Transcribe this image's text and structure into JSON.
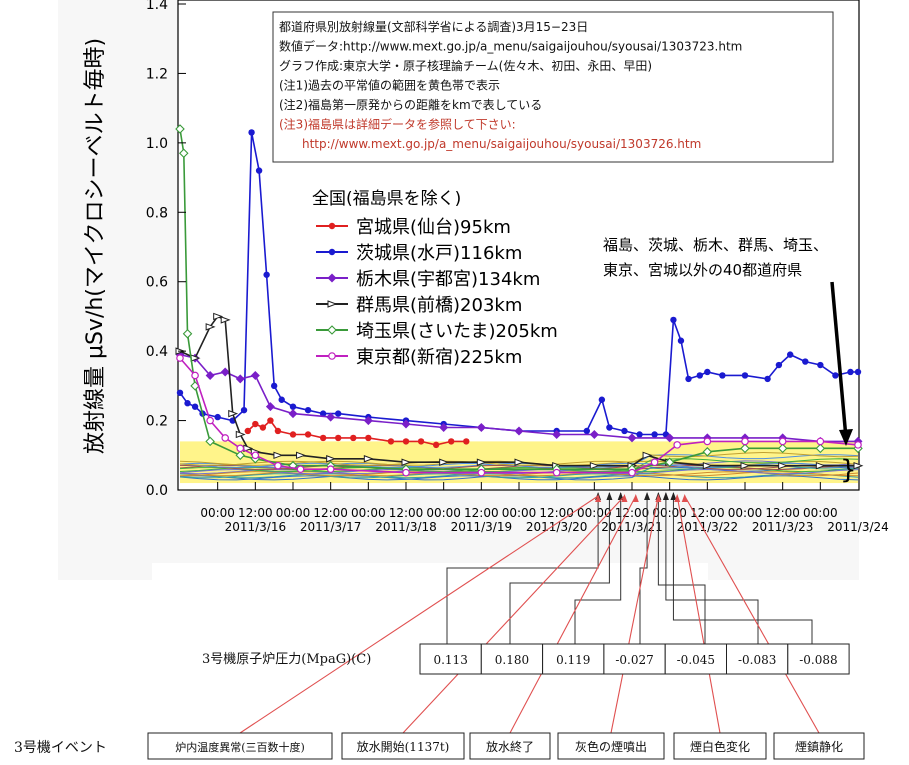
{
  "chart_data": {
    "type": "line",
    "ylabel": "放射線量 μSv/h(マイクロシーベルト毎時)",
    "ylim": [
      0,
      1.4
    ],
    "y_ticks": [
      "0.0",
      "0.2",
      "0.4",
      "0.6",
      "0.8",
      "1.0",
      "1.2",
      "1.4"
    ],
    "x_time_labels": [
      "00:00",
      "12:00",
      "00:00",
      "12:00",
      "00:00",
      "12:00",
      "00:00",
      "12:00",
      "00:00",
      "12:00",
      "00:00",
      "12:00",
      "00:00",
      "12:00",
      "00:00",
      "12:00",
      "00:00"
    ],
    "x_date_labels": [
      "2011/3/16",
      "2011/3/17",
      "2011/3/18",
      "2011/3/19",
      "2011/3/20",
      "2011/3/21",
      "2011/3/22",
      "2011/3/23",
      "2011/3/24"
    ],
    "xlim_days": [
      15.0,
      24.0
    ],
    "grid": false,
    "legend_title": "全国(福島県を除く)",
    "legend_position": "center-left",
    "note_box": [
      {
        "text": "都道府県別放射線量(文部科学省による調査)3月15−23日",
        "color": "#111111"
      },
      {
        "text": "数値データ:http://www.mext.go.jp/a_menu/saigaijouhou/syousai/1303723.htm",
        "color": "#111111"
      },
      {
        "text": "グラフ作成:東京大学・原子核理論チーム(佐々木、初田、永田、早田)",
        "color": "#111111"
      },
      {
        "text": "(注1)過去の平常値の範囲を黄色帯で表示",
        "color": "#111111"
      },
      {
        "text": "(注2)福島第一原発からの距離をkmで表している",
        "color": "#111111"
      },
      {
        "text": "(注3)福島県は詳細データを参照して下さい:",
        "color": "#c0392b"
      },
      {
        "text": "http://www.mext.go.jp/a_menu/saigaijouhou/syousai/1303726.htm",
        "color": "#c0392b"
      }
    ],
    "annotation": "福島、茨城、栃木、群馬、埼玉、\n東京、宮城以外の40都道府県",
    "series": [
      {
        "name": "宮城県(仙台)95km",
        "color": "#e02020",
        "marker": "filled-circle",
        "x": [
          15.9,
          16.0,
          16.1,
          16.2,
          16.3,
          16.5,
          16.7,
          16.9,
          17.1,
          17.3,
          17.5,
          17.8,
          18.0,
          18.2,
          18.4,
          18.6,
          18.8
        ],
        "y": [
          0.17,
          0.19,
          0.18,
          0.2,
          0.17,
          0.16,
          0.16,
          0.15,
          0.15,
          0.15,
          0.15,
          0.14,
          0.14,
          0.14,
          0.13,
          0.14,
          0.14
        ]
      },
      {
        "name": "茨城県(水戸)116km",
        "color": "#1a1ad0",
        "marker": "filled-circle",
        "x": [
          15.0,
          15.1,
          15.2,
          15.3,
          15.5,
          15.7,
          15.85,
          15.95,
          16.05,
          16.15,
          16.25,
          16.35,
          16.5,
          16.7,
          16.9,
          17.1,
          17.5,
          18.0,
          18.5,
          19.0,
          19.5,
          20.0,
          20.4,
          20.6,
          20.7,
          20.9,
          21.1,
          21.3,
          21.45,
          21.55,
          21.65,
          21.75,
          21.9,
          22.0,
          22.2,
          22.5,
          22.8,
          22.95,
          23.1,
          23.3,
          23.5,
          23.7,
          23.9,
          24.0
        ],
        "y": [
          0.28,
          0.25,
          0.24,
          0.22,
          0.21,
          0.2,
          0.23,
          1.03,
          0.92,
          0.62,
          0.3,
          0.26,
          0.24,
          0.23,
          0.22,
          0.22,
          0.21,
          0.2,
          0.19,
          0.18,
          0.17,
          0.17,
          0.17,
          0.26,
          0.18,
          0.17,
          0.16,
          0.16,
          0.16,
          0.49,
          0.43,
          0.32,
          0.33,
          0.34,
          0.33,
          0.33,
          0.32,
          0.36,
          0.39,
          0.37,
          0.36,
          0.33,
          0.34,
          0.34
        ]
      },
      {
        "name": "栃木県(宇都宮)134km",
        "color": "#7a1fc8",
        "marker": "filled-diamond",
        "x": [
          15.0,
          15.2,
          15.4,
          15.6,
          15.8,
          16.0,
          16.2,
          16.5,
          17.0,
          17.5,
          18.0,
          18.5,
          19.0,
          19.5,
          20.0,
          20.5,
          21.0,
          21.5,
          22.0,
          22.5,
          23.0,
          23.5,
          24.0
        ],
        "y": [
          0.39,
          0.38,
          0.33,
          0.34,
          0.32,
          0.33,
          0.24,
          0.22,
          0.21,
          0.2,
          0.19,
          0.18,
          0.18,
          0.17,
          0.16,
          0.16,
          0.15,
          0.15,
          0.15,
          0.15,
          0.15,
          0.14,
          0.14
        ]
      },
      {
        "name": "群馬県(前橋)203km",
        "color": "#222222",
        "marker": "open-triangle",
        "x": [
          15.0,
          15.2,
          15.4,
          15.5,
          15.6,
          15.7,
          15.8,
          15.9,
          16.0,
          16.3,
          16.6,
          17.0,
          17.5,
          18.0,
          18.5,
          19.0,
          19.5,
          20.0,
          20.5,
          21.0,
          21.2,
          21.5,
          22.0,
          22.5,
          23.0,
          23.5,
          24.0
        ],
        "y": [
          0.4,
          0.38,
          0.47,
          0.5,
          0.49,
          0.22,
          0.16,
          0.12,
          0.11,
          0.1,
          0.1,
          0.09,
          0.09,
          0.08,
          0.08,
          0.08,
          0.08,
          0.07,
          0.07,
          0.07,
          0.1,
          0.08,
          0.07,
          0.07,
          0.07,
          0.07,
          0.07
        ]
      },
      {
        "name": "埼玉県(さいたま)205km",
        "color": "#3a9a3a",
        "marker": "open-diamond",
        "x": [
          15.0,
          15.05,
          15.1,
          15.2,
          15.4,
          15.8,
          16.0,
          16.5,
          17.0,
          18.0,
          19.0,
          20.0,
          21.0,
          21.5,
          22.0,
          22.5,
          23.0,
          23.5,
          24.0
        ],
        "y": [
          1.04,
          0.97,
          0.45,
          0.3,
          0.14,
          0.1,
          0.09,
          0.07,
          0.07,
          0.06,
          0.06,
          0.06,
          0.06,
          0.08,
          0.11,
          0.12,
          0.12,
          0.12,
          0.12
        ]
      },
      {
        "name": "東京都(新宿)225km",
        "color": "#c020c0",
        "marker": "open-circle",
        "x": [
          15.0,
          15.2,
          15.4,
          15.6,
          15.8,
          16.0,
          16.3,
          16.6,
          17.0,
          18.0,
          19.0,
          20.0,
          21.0,
          21.3,
          21.6,
          22.0,
          22.5,
          23.0,
          23.5,
          24.0
        ],
        "y": [
          0.38,
          0.33,
          0.2,
          0.15,
          0.12,
          0.1,
          0.07,
          0.06,
          0.06,
          0.05,
          0.05,
          0.05,
          0.05,
          0.08,
          0.13,
          0.14,
          0.14,
          0.14,
          0.14,
          0.13
        ]
      }
    ],
    "normal_range_band": {
      "y": [
        0.02,
        0.14
      ],
      "color": "#fff48a"
    }
  },
  "pressure_table": {
    "label": "3号機原子炉圧力(MpaG)(C)",
    "values": [
      "0.113",
      "0.180",
      "0.119",
      "-0.027",
      "-0.045",
      "-0.083",
      "-0.088"
    ]
  },
  "events": {
    "label": "3号機イベント",
    "items": [
      "炉内温度異常(三百数十度)",
      "放水開始(1137t)",
      "放水終了",
      "灰色の煙噴出",
      "煙白色変化",
      "煙鎮静化"
    ]
  },
  "colors": {
    "axis": "#000000",
    "event_line": "#e05050",
    "connector": "#333333"
  }
}
